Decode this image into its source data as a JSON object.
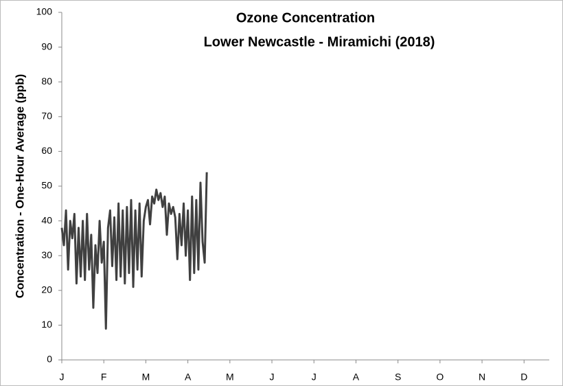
{
  "chart_data": {
    "type": "line",
    "title": "Ozone Concentration",
    "subtitle": "Lower Newcastle - Miramichi (2018)",
    "ylabel": "Concentration - One-Hour Average (ppb)",
    "ylim": [
      0,
      100
    ],
    "yticks": [
      0,
      10,
      20,
      30,
      40,
      50,
      60,
      70,
      80,
      90,
      100
    ],
    "xlim": [
      0,
      11.6
    ],
    "xticks": [
      {
        "value": 0,
        "label": "J"
      },
      {
        "value": 1,
        "label": "F"
      },
      {
        "value": 2,
        "label": "M"
      },
      {
        "value": 3,
        "label": "A"
      },
      {
        "value": 4,
        "label": "M"
      },
      {
        "value": 5,
        "label": "J"
      },
      {
        "value": 6,
        "label": "J"
      },
      {
        "value": 7,
        "label": "A"
      },
      {
        "value": 8,
        "label": "S"
      },
      {
        "value": 9,
        "label": "O"
      },
      {
        "value": 10,
        "label": "N"
      },
      {
        "value": 11,
        "label": "D"
      }
    ],
    "x": [
      0,
      0.05,
      0.1,
      0.15,
      0.2,
      0.25,
      0.3,
      0.35,
      0.4,
      0.45,
      0.5,
      0.55,
      0.6,
      0.65,
      0.7,
      0.75,
      0.8,
      0.85,
      0.9,
      0.95,
      1,
      1.05,
      1.1,
      1.15,
      1.2,
      1.25,
      1.3,
      1.35,
      1.4,
      1.45,
      1.5,
      1.55,
      1.6,
      1.65,
      1.7,
      1.75,
      1.8,
      1.85,
      1.9,
      1.95,
      2,
      2.05,
      2.1,
      2.15,
      2.2,
      2.25,
      2.3,
      2.35,
      2.4,
      2.45,
      2.5,
      2.55,
      2.6,
      2.65,
      2.7,
      2.75,
      2.8,
      2.85,
      2.9,
      2.95,
      3,
      3.05,
      3.1,
      3.15,
      3.2,
      3.25,
      3.3,
      3.35,
      3.4,
      3.45
    ],
    "series": [
      {
        "color": "#404040",
        "values": [
          38,
          33,
          43,
          26,
          40,
          35,
          42,
          22,
          38,
          24,
          40,
          23,
          42,
          26,
          36,
          15,
          33,
          25,
          40,
          28,
          34,
          9,
          38,
          43,
          27,
          41,
          23,
          45,
          24,
          43,
          22,
          44,
          25,
          46,
          21,
          43,
          26,
          45,
          24,
          40,
          44,
          46,
          39,
          47,
          45,
          49,
          46,
          48,
          44,
          47,
          36,
          45,
          42,
          44,
          41,
          29,
          42,
          33,
          45,
          30,
          43,
          23,
          47,
          25,
          46,
          26,
          51,
          34,
          28,
          54
        ]
      }
    ]
  }
}
